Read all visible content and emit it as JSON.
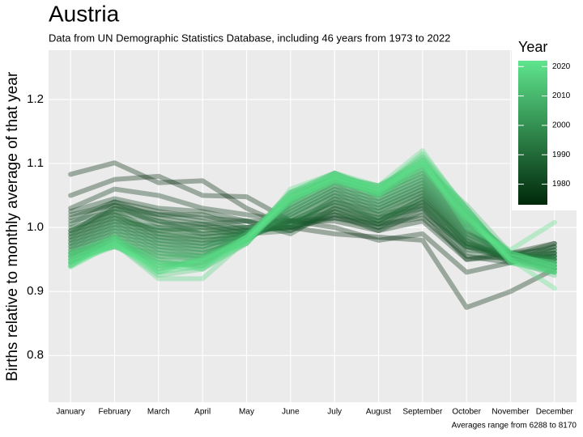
{
  "chart_data": {
    "type": "line",
    "title": "Austria",
    "subtitle": "Data from UN Demographic Statistics Database, including 46 years from 1973 to 2022",
    "ylabel": "Births relative to monthly average of that year",
    "caption": "Averages range from 6288 to 8170",
    "categories": [
      "January",
      "February",
      "March",
      "April",
      "May",
      "June",
      "July",
      "August",
      "September",
      "October",
      "November",
      "December"
    ],
    "ylim": [
      0.727,
      1.277
    ],
    "yticks": [
      0.8,
      0.9,
      {
        "value": 1,
        "label": "1.0"
      },
      1.1,
      1.2
    ],
    "grid": true,
    "color_scale": {
      "title": "Year",
      "lim": [
        1973,
        2022
      ],
      "ticks": [
        1980,
        1990,
        2000,
        2010,
        2020
      ],
      "colors": [
        "#00280a",
        "#5fe58d"
      ]
    },
    "series": [
      {
        "year": 1973,
        "values": [
          1.083,
          1.101,
          1.07,
          1.073,
          1.03,
          1.0,
          0.99,
          0.985,
          0.98,
          0.875,
          0.9,
          0.935
        ]
      },
      {
        "year": 1974,
        "values": [
          1.05,
          1.075,
          1.08,
          1.05,
          1.048,
          1.01,
          1.0,
          0.98,
          0.99,
          0.93,
          0.945,
          0.96
        ]
      },
      {
        "year": 1976,
        "values": [
          1.03,
          1.06,
          1.05,
          1.03,
          1.02,
          1.01,
          1.01,
          0.995,
          1.01,
          0.95,
          0.96,
          0.975
        ]
      },
      {
        "year": 1978,
        "values": [
          1.025,
          1.045,
          1.03,
          1.025,
          1.01,
          1.01,
          1.015,
          1.005,
          1.015,
          0.955,
          0.945,
          0.97
        ]
      },
      {
        "year": 1980,
        "values": [
          1.015,
          1.04,
          1.025,
          1.015,
          1.01,
          0.995,
          1.02,
          0.995,
          1.025,
          0.95,
          0.955,
          0.975
        ]
      },
      {
        "year": 1982,
        "values": [
          1.02,
          1.035,
          1.02,
          1.02,
          1.0,
          1.0,
          1.015,
          1.0,
          1.02,
          0.97,
          0.95,
          0.955
        ]
      },
      {
        "year": 1983,
        "values": [
          1.005,
          1.04,
          1.015,
          1.005,
          1.01,
          0.99,
          1.03,
          1.005,
          1.03,
          0.965,
          0.96,
          0.965
        ]
      },
      {
        "year": 1984,
        "values": [
          0.995,
          1.03,
          1.02,
          1.01,
          0.995,
          1.0,
          1.02,
          1.01,
          1.04,
          0.975,
          0.955,
          0.97
        ]
      },
      {
        "year": 1985,
        "values": [
          1.01,
          1.025,
          1.01,
          1.0,
          1.0,
          1.01,
          1.025,
          1.0,
          1.035,
          0.96,
          0.95,
          0.96
        ]
      },
      {
        "year": 1986,
        "values": [
          0.99,
          1.035,
          1.005,
          1.005,
          0.99,
          0.995,
          1.03,
          1.015,
          1.03,
          0.97,
          0.96,
          0.95
        ]
      },
      {
        "year": 1987,
        "values": [
          1.0,
          1.02,
          1.0,
          0.995,
          1.0,
          1.005,
          1.035,
          1.01,
          1.045,
          0.975,
          0.95,
          0.955
        ]
      },
      {
        "year": 1988,
        "values": [
          0.985,
          1.03,
          1.01,
          0.99,
          0.995,
          1.0,
          1.025,
          1.005,
          1.04,
          0.98,
          0.945,
          0.965
        ]
      },
      {
        "year": 1989,
        "values": [
          0.995,
          1.015,
          0.995,
          1.0,
          0.985,
          1.01,
          1.04,
          1.02,
          1.035,
          0.97,
          0.955,
          0.96
        ]
      },
      {
        "year": 1990,
        "values": [
          0.98,
          1.025,
          0.99,
          0.985,
          0.99,
          1.005,
          1.035,
          1.015,
          1.05,
          0.975,
          0.96,
          0.95
        ]
      },
      {
        "year": 1991,
        "values": [
          0.99,
          1.01,
          1.0,
          0.99,
          0.995,
          1.0,
          1.045,
          1.01,
          1.045,
          0.985,
          0.95,
          0.955
        ]
      },
      {
        "year": 1992,
        "values": [
          0.975,
          1.02,
          0.985,
          0.98,
          0.985,
          1.01,
          1.04,
          1.025,
          1.055,
          0.98,
          0.955,
          0.945
        ]
      },
      {
        "year": 1993,
        "values": [
          0.985,
          1.005,
          0.995,
          0.985,
          0.99,
          1.015,
          1.05,
          1.02,
          1.05,
          0.99,
          0.96,
          0.95
        ]
      },
      {
        "year": 1994,
        "values": [
          0.97,
          1.015,
          0.98,
          0.975,
          0.995,
          1.005,
          1.045,
          1.03,
          1.06,
          0.985,
          0.95,
          0.955
        ]
      },
      {
        "year": 1995,
        "values": [
          0.98,
          1.0,
          0.99,
          0.98,
          0.985,
          1.02,
          1.055,
          1.025,
          1.055,
          0.995,
          0.955,
          0.945
        ]
      },
      {
        "year": 1996,
        "values": [
          0.965,
          1.01,
          0.975,
          0.97,
          0.99,
          1.015,
          1.05,
          1.035,
          1.065,
          0.99,
          0.96,
          0.95
        ]
      },
      {
        "year": 1997,
        "values": [
          0.975,
          0.995,
          0.985,
          0.975,
          0.98,
          1.025,
          1.06,
          1.03,
          1.06,
          1.0,
          0.95,
          0.94
        ]
      },
      {
        "year": 1998,
        "values": [
          0.96,
          1.005,
          0.97,
          0.965,
          0.985,
          1.02,
          1.055,
          1.04,
          1.07,
          0.995,
          0.955,
          0.945
        ]
      },
      {
        "year": 1999,
        "values": [
          0.97,
          0.99,
          0.98,
          0.97,
          0.99,
          1.03,
          1.065,
          1.035,
          1.065,
          1.005,
          0.96,
          0.94
        ]
      },
      {
        "year": 2000,
        "values": [
          0.955,
          1.0,
          0.965,
          0.96,
          0.98,
          1.025,
          1.06,
          1.045,
          1.075,
          1.0,
          0.95,
          0.95
        ]
      },
      {
        "year": 2001,
        "values": [
          0.965,
          0.985,
          0.975,
          0.965,
          0.985,
          1.035,
          1.07,
          1.04,
          1.07,
          1.01,
          0.955,
          0.935
        ]
      },
      {
        "year": 2002,
        "values": [
          0.95,
          0.995,
          0.96,
          0.955,
          0.99,
          1.03,
          1.065,
          1.05,
          1.08,
          1.005,
          0.96,
          0.945
        ]
      },
      {
        "year": 2003,
        "values": [
          0.96,
          0.98,
          0.97,
          0.96,
          0.98,
          1.04,
          1.075,
          1.045,
          1.075,
          1.015,
          0.95,
          0.94
        ]
      },
      {
        "year": 2004,
        "values": [
          0.945,
          0.99,
          0.955,
          0.95,
          0.985,
          1.035,
          1.07,
          1.055,
          1.085,
          1.01,
          0.955,
          0.93
        ]
      },
      {
        "year": 2005,
        "values": [
          0.955,
          0.975,
          0.965,
          0.955,
          0.99,
          1.045,
          1.08,
          1.05,
          1.08,
          1.02,
          0.96,
          0.94
        ]
      },
      {
        "year": 2006,
        "values": [
          0.94,
          0.985,
          0.95,
          0.945,
          0.98,
          1.04,
          1.075,
          1.06,
          1.09,
          1.015,
          0.95,
          0.935
        ]
      },
      {
        "year": 2007,
        "values": [
          0.95,
          0.97,
          0.96,
          0.95,
          0.985,
          1.05,
          1.085,
          1.055,
          1.085,
          1.025,
          0.955,
          0.93
        ]
      },
      {
        "year": 2008,
        "values": [
          0.96,
          0.98,
          0.945,
          0.94,
          0.99,
          1.045,
          1.08,
          1.065,
          1.095,
          1.02,
          0.96,
          0.94
        ]
      },
      {
        "year": 2009,
        "values": [
          0.945,
          0.975,
          0.955,
          0.955,
          0.98,
          1.055,
          1.075,
          1.06,
          1.1,
          1.03,
          0.95,
          0.935
        ]
      },
      {
        "year": 2010,
        "values": [
          0.955,
          0.985,
          0.94,
          0.945,
          0.985,
          1.04,
          1.085,
          1.05,
          1.09,
          1.025,
          0.955,
          0.945
        ]
      },
      {
        "year": 2011,
        "values": [
          0.96,
          0.97,
          0.95,
          0.935,
          0.975,
          1.05,
          1.08,
          1.065,
          1.105,
          1.02,
          0.945,
          0.93
        ]
      },
      {
        "year": 2012,
        "values": [
          0.945,
          0.98,
          0.935,
          0.95,
          0.98,
          1.045,
          1.07,
          1.055,
          1.095,
          1.035,
          0.96,
          0.94
        ]
      },
      {
        "year": 2013,
        "values": [
          0.95,
          0.975,
          0.945,
          0.94,
          0.985,
          1.055,
          1.085,
          1.06,
          1.11,
          1.03,
          0.95,
          0.925
        ]
      },
      {
        "year": 2014,
        "values": [
          0.94,
          0.985,
          0.93,
          0.955,
          0.975,
          1.05,
          1.075,
          1.065,
          1.1,
          1.02,
          0.955,
          0.935
        ]
      },
      {
        "year": 2015,
        "values": [
          0.955,
          0.97,
          0.94,
          0.945,
          0.98,
          1.04,
          1.08,
          1.05,
          1.105,
          1.025,
          0.945,
          0.94
        ]
      },
      {
        "year": 2016,
        "values": [
          0.945,
          0.975,
          0.925,
          0.935,
          0.985,
          1.055,
          1.085,
          1.06,
          1.115,
          1.03,
          0.95,
          0.93
        ]
      },
      {
        "year": 2017,
        "values": [
          0.95,
          0.98,
          0.935,
          0.95,
          0.975,
          1.045,
          1.07,
          1.055,
          1.1,
          1.015,
          0.955,
          0.945
        ]
      },
      {
        "year": 2018,
        "values": [
          0.94,
          0.975,
          0.92,
          0.92,
          0.98,
          1.05,
          1.08,
          1.06,
          1.11,
          1.02,
          0.95,
          0.935
        ]
      },
      {
        "year": 2019,
        "values": [
          0.96,
          0.985,
          0.945,
          0.945,
          0.985,
          1.04,
          1.075,
          1.05,
          1.095,
          1.01,
          0.96,
          0.94
        ]
      },
      {
        "year": 2020,
        "values": [
          0.95,
          0.98,
          0.93,
          0.94,
          0.975,
          1.06,
          1.085,
          1.065,
          1.12,
          1.025,
          0.945,
          0.93
        ]
      },
      {
        "year": 2021,
        "values": [
          0.945,
          0.97,
          0.94,
          0.935,
          0.98,
          1.045,
          1.075,
          1.055,
          1.105,
          1.0,
          0.965,
          1.008
        ]
      },
      {
        "year": 2022,
        "values": [
          0.938,
          0.975,
          0.93,
          0.95,
          0.985,
          1.05,
          1.08,
          1.06,
          1.1,
          1.015,
          0.95,
          0.905
        ]
      }
    ]
  }
}
